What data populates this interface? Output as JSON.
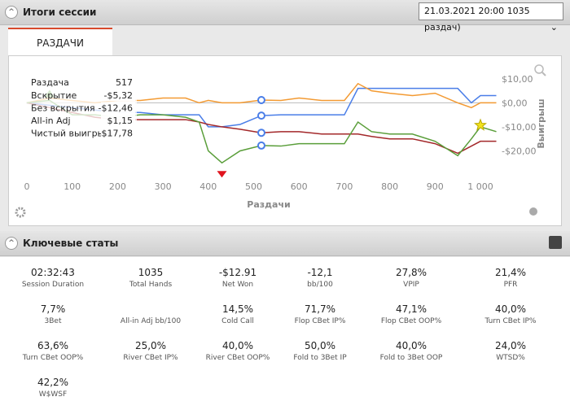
{
  "header": {
    "title": "Итоги сессии",
    "session": "21.03.2021 20:00 1035 раздач)"
  },
  "tab": "РАЗДАЧИ",
  "chart_data": {
    "type": "line",
    "x_label": "Раздачи",
    "y_label": "Выигрыш",
    "x": [
      0,
      50,
      100,
      150,
      200,
      250,
      300,
      350,
      380,
      400,
      430,
      470,
      517,
      560,
      600,
      650,
      700,
      730,
      760,
      800,
      850,
      900,
      950,
      980,
      1000,
      1035
    ],
    "series": [
      {
        "name": "Вскрытие",
        "color": "#4a7ee8",
        "values": [
          0,
          -1,
          -2,
          -3,
          -4,
          -4,
          -5,
          -5,
          -5,
          -10,
          -10,
          -9,
          -5.32,
          -5,
          -5,
          -5,
          -5,
          6,
          6,
          6,
          6,
          6,
          6,
          0,
          3,
          3
        ]
      },
      {
        "name": "Без вскрытия",
        "color": "#a3282a",
        "values": [
          0,
          -2,
          -4,
          -6,
          -7,
          -7,
          -7,
          -7,
          -8,
          -9,
          -10,
          -11,
          -12.46,
          -12,
          -12,
          -13,
          -13,
          -13,
          -14,
          -15,
          -15,
          -17,
          -21,
          -18,
          -16,
          -16
        ]
      },
      {
        "name": "All-in Adj",
        "color": "#f39a32",
        "values": [
          0,
          2,
          1,
          0,
          1,
          1,
          2,
          2,
          0,
          1,
          0,
          0,
          1.15,
          1,
          2,
          1,
          1,
          8,
          5,
          4,
          3,
          4,
          0,
          -2,
          0,
          0
        ]
      },
      {
        "name": "Чистый выигрыш",
        "color": "#5a9e3a",
        "values": [
          0,
          1,
          -5,
          -5,
          -6,
          -5,
          -5,
          -6,
          -8,
          -20,
          -25,
          -20,
          -17.78,
          -18,
          -17,
          -17,
          -17,
          -8,
          -12,
          -13,
          -13,
          -16,
          -22,
          -15,
          -10,
          -12
        ]
      }
    ],
    "xlim": [
      0,
      1035
    ],
    "ylim": [
      -30,
      13
    ],
    "xticks": [
      0,
      100,
      200,
      300,
      400,
      500,
      600,
      700,
      800,
      900,
      {
        "value": 1000,
        "label": "1 000"
      }
    ],
    "yticks": [
      {
        "value": 10,
        "label": "$10,00"
      },
      {
        "value": 0,
        "label": "$0,00"
      },
      {
        "value": -10,
        "label": "-$10,00"
      },
      {
        "value": -20,
        "label": "-$20,00"
      }
    ],
    "tooltip": {
      "label": "Раздача",
      "index": 12,
      "values": [
        "-$5,32",
        "-$12,46",
        "$1,15",
        "-$17,78"
      ]
    }
  },
  "stats_title": "Ключевые статы",
  "stats": [
    {
      "value": "02:32:43",
      "label": "Session Duration"
    },
    {
      "value": "1035",
      "label": "Total Hands"
    },
    {
      "value": "-$12.91",
      "label": "Net Won"
    },
    {
      "value": "-12,1",
      "label": "bb/100"
    },
    {
      "value": "27,8%",
      "label": "VPIP"
    },
    {
      "value": "21,4%",
      "label": "PFR"
    },
    {
      "value": "7,7%",
      "label": "3Bet"
    },
    {
      "label": "All-in Adj bb/100"
    },
    {
      "value": "14,5%",
      "label": "Cold Call"
    },
    {
      "value": "71,7%",
      "label": "Flop CBet IP%"
    },
    {
      "value": "47,1%",
      "label": "Flop CBet OOP%"
    },
    {
      "value": "40,0%",
      "label": "Turn CBet IP%"
    },
    {
      "value": "63,6%",
      "label": "Turn CBet OOP%"
    },
    {
      "value": "25,0%",
      "label": "River CBet IP%"
    },
    {
      "value": "40,0%",
      "label": "River CBet OOP%"
    },
    {
      "value": "50,0%",
      "label": "Fold to 3Bet IP"
    },
    {
      "value": "40,0%",
      "label": "Fold to 3Bet OOP"
    },
    {
      "value": "24,0%",
      "label": "WTSD%"
    },
    {
      "value": "42,2%",
      "label": "W$WSF"
    }
  ]
}
